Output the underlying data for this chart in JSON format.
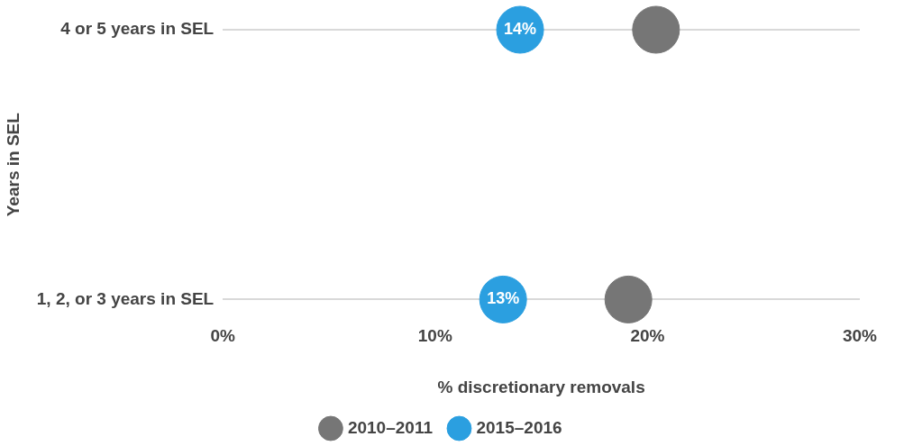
{
  "chart_data": {
    "type": "scatter",
    "orientation": "horizontal",
    "xlabel": "% discretionary removals",
    "ylabel": "Years in SEL",
    "categories": [
      "4 or 5 years in SEL",
      "1, 2, or 3 years in SEL"
    ],
    "series": [
      {
        "name": "2010–2011",
        "color": "#767676",
        "values": [
          20.4,
          19.1
        ]
      },
      {
        "name": "2015–2016",
        "color": "#2b9fe0",
        "values": [
          14,
          13.2
        ],
        "value_labels": [
          "14%",
          "13%"
        ]
      }
    ],
    "xlim": [
      0,
      30
    ],
    "xticks": [
      {
        "value": 0,
        "label": "0%"
      },
      {
        "value": 10,
        "label": "10%"
      },
      {
        "value": 20,
        "label": "20%"
      },
      {
        "value": 30,
        "label": "30%"
      }
    ],
    "grid": "y",
    "legend": "bottom",
    "marker": "circle"
  }
}
